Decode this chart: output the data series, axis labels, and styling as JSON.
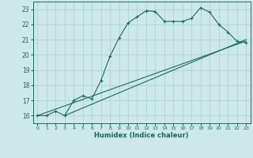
{
  "xlabel": "Humidex (Indice chaleur)",
  "background_color": "#cce8e8",
  "grid_color": "#a8d0d0",
  "line_color": "#1a6b5a",
  "xlim": [
    -0.5,
    23.5
  ],
  "ylim": [
    15.5,
    23.5
  ],
  "xticks": [
    0,
    1,
    2,
    3,
    4,
    5,
    6,
    7,
    8,
    9,
    10,
    11,
    12,
    13,
    14,
    15,
    16,
    17,
    18,
    19,
    20,
    21,
    22,
    23
  ],
  "yticks": [
    16,
    17,
    18,
    19,
    20,
    21,
    22,
    23
  ],
  "line1_x": [
    0,
    1,
    2,
    3,
    4,
    5,
    6,
    7,
    8,
    9,
    10,
    11,
    12,
    13,
    14,
    15,
    16,
    17,
    18,
    19,
    20,
    21,
    22,
    23
  ],
  "line1_y": [
    16.0,
    16.0,
    16.3,
    16.0,
    17.0,
    17.3,
    17.1,
    18.3,
    19.9,
    21.1,
    22.1,
    22.5,
    22.9,
    22.85,
    22.2,
    22.2,
    22.2,
    22.4,
    23.1,
    22.8,
    22.0,
    21.5,
    20.9,
    20.8
  ],
  "line2_x": [
    0,
    23
  ],
  "line2_y": [
    16.0,
    20.9
  ],
  "line3_x": [
    3,
    23
  ],
  "line3_y": [
    16.0,
    21.0
  ]
}
